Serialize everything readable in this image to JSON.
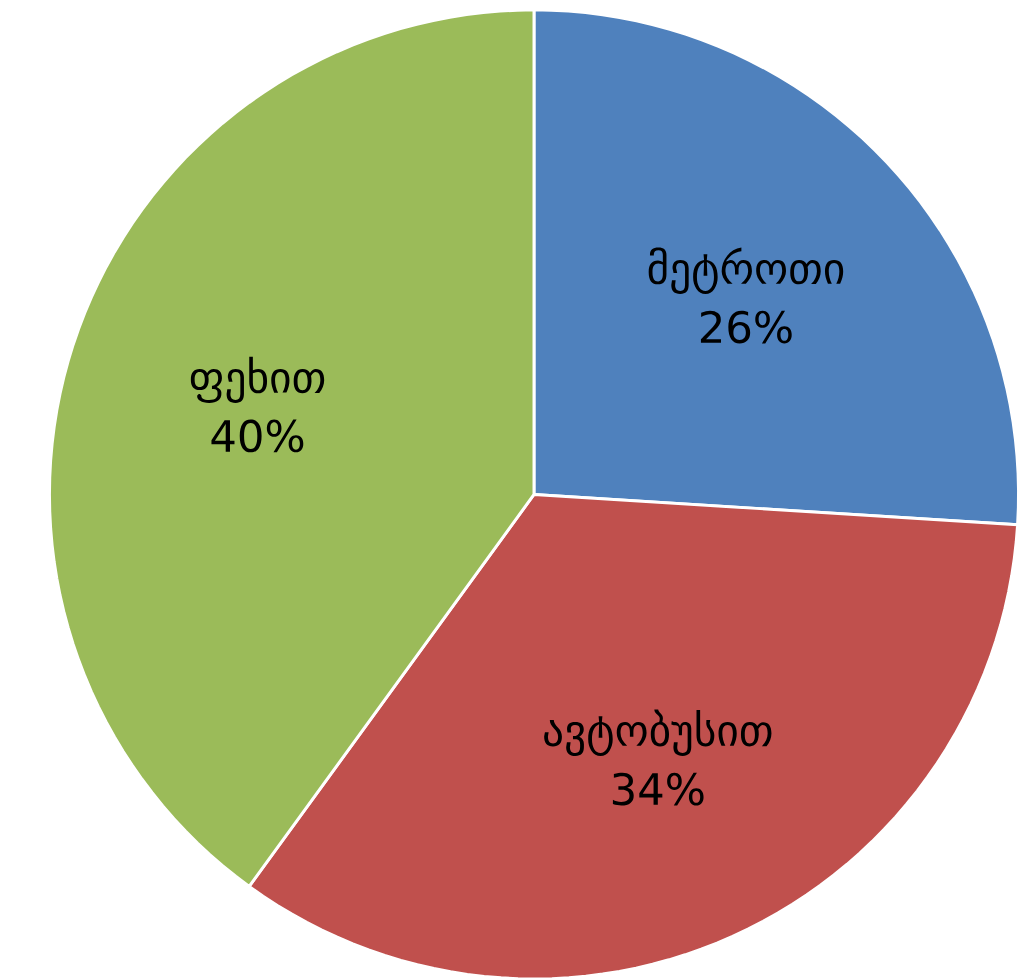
{
  "chart_data": {
    "type": "pie",
    "categories": [
      "მეტროთი",
      "ავტობუსით",
      "ფეხით"
    ],
    "values": [
      26,
      34,
      40
    ],
    "colors": [
      "#4f81bd",
      "#c0504d",
      "#9bbb59"
    ],
    "value_labels": [
      "26%",
      "34%",
      "40%"
    ]
  }
}
